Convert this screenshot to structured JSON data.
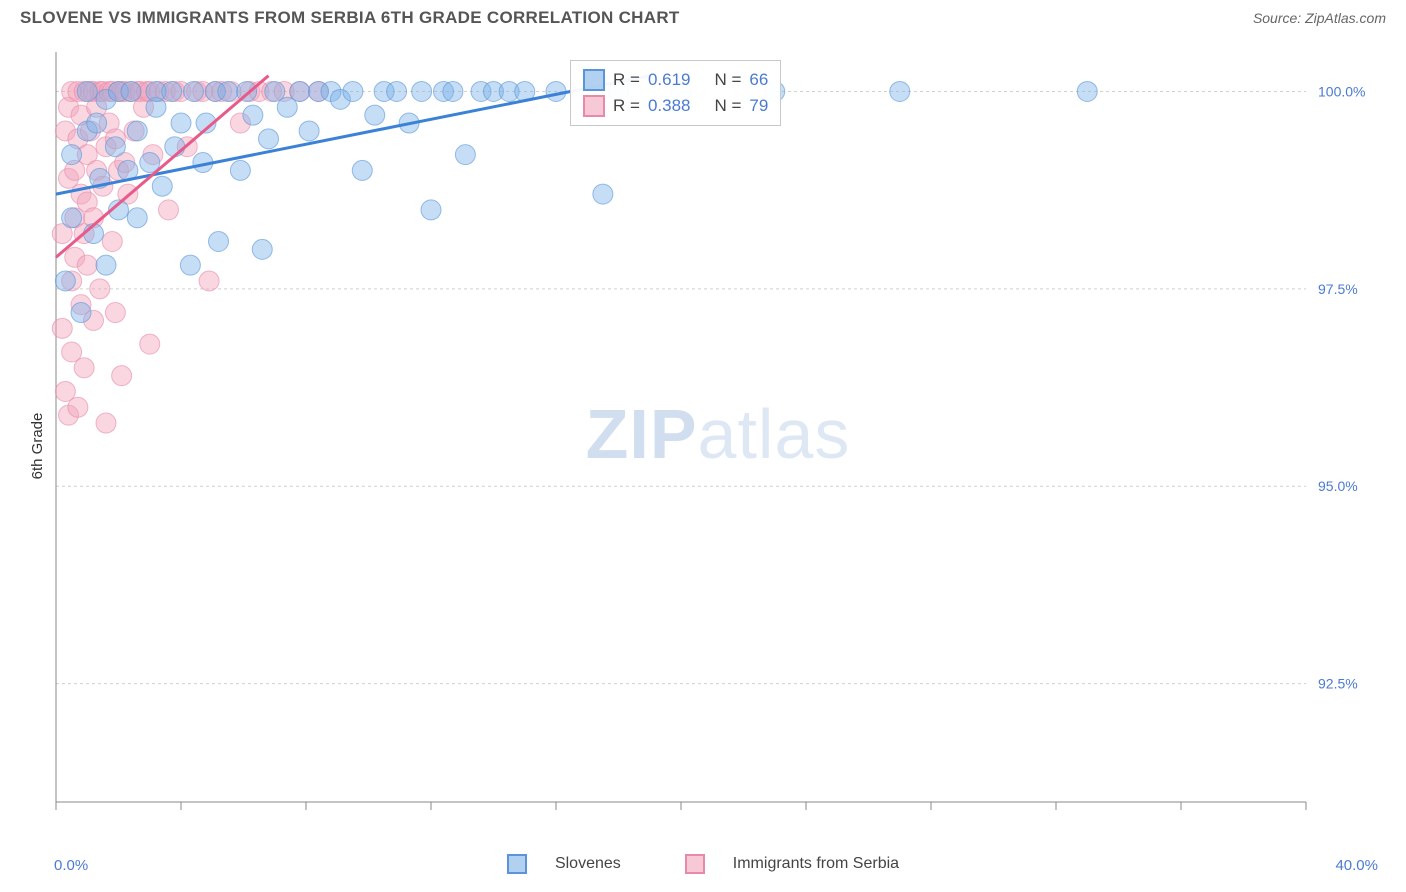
{
  "header": {
    "title": "SLOVENE VS IMMIGRANTS FROM SERBIA 6TH GRADE CORRELATION CHART",
    "source": "Source: ZipAtlas.com"
  },
  "yaxis": {
    "label": "6th Grade"
  },
  "watermark": {
    "bold": "ZIP",
    "rest": "atlas"
  },
  "chart": {
    "type": "scatter",
    "background_color": "#ffffff",
    "grid_color": "#d0d0d0",
    "xlim": [
      0,
      40
    ],
    "ylim": [
      91,
      100.5
    ],
    "y_ticks": [
      92.5,
      95.0,
      97.5,
      100.0
    ],
    "y_tick_labels": [
      "92.5%",
      "95.0%",
      "97.5%",
      "100.0%"
    ],
    "x_ticks": [
      0,
      4,
      8,
      12,
      16,
      20,
      24,
      28,
      32,
      36,
      40
    ],
    "x_min_label": "0.0%",
    "x_max_label": "40.0%",
    "marker_radius": 10,
    "marker_opacity": 0.45,
    "trend_line_width": 3,
    "series": [
      {
        "name": "Slovenes",
        "color_fill": "#7fb3e8",
        "color_stroke": "#5a95d8",
        "R": "0.619",
        "N": "66",
        "trend": {
          "x1": 0,
          "y1": 98.7,
          "x2": 19,
          "y2": 100.2
        },
        "points": [
          [
            0.3,
            97.6
          ],
          [
            0.5,
            98.4
          ],
          [
            0.5,
            99.2
          ],
          [
            0.8,
            97.2
          ],
          [
            1.0,
            99.5
          ],
          [
            1.0,
            100.0
          ],
          [
            1.2,
            98.2
          ],
          [
            1.3,
            99.6
          ],
          [
            1.4,
            98.9
          ],
          [
            1.6,
            97.8
          ],
          [
            1.6,
            99.9
          ],
          [
            1.9,
            99.3
          ],
          [
            2.0,
            100.0
          ],
          [
            2.0,
            98.5
          ],
          [
            2.3,
            99.0
          ],
          [
            2.4,
            100.0
          ],
          [
            2.6,
            98.4
          ],
          [
            2.6,
            99.5
          ],
          [
            3.0,
            99.1
          ],
          [
            3.2,
            99.8
          ],
          [
            3.2,
            100.0
          ],
          [
            3.4,
            98.8
          ],
          [
            3.7,
            100.0
          ],
          [
            3.8,
            99.3
          ],
          [
            4.0,
            99.6
          ],
          [
            4.3,
            97.8
          ],
          [
            4.4,
            100.0
          ],
          [
            4.7,
            99.1
          ],
          [
            4.8,
            99.6
          ],
          [
            5.1,
            100.0
          ],
          [
            5.2,
            98.1
          ],
          [
            5.5,
            100.0
          ],
          [
            5.9,
            99.0
          ],
          [
            6.1,
            100.0
          ],
          [
            6.3,
            99.7
          ],
          [
            6.6,
            98.0
          ],
          [
            6.8,
            99.4
          ],
          [
            7.0,
            100.0
          ],
          [
            7.4,
            99.8
          ],
          [
            7.8,
            100.0
          ],
          [
            8.1,
            99.5
          ],
          [
            8.4,
            100.0
          ],
          [
            8.8,
            100.0
          ],
          [
            9.1,
            99.9
          ],
          [
            9.5,
            100.0
          ],
          [
            9.8,
            99.0
          ],
          [
            10.2,
            99.7
          ],
          [
            10.5,
            100.0
          ],
          [
            10.9,
            100.0
          ],
          [
            11.3,
            99.6
          ],
          [
            11.7,
            100.0
          ],
          [
            12.0,
            98.5
          ],
          [
            12.4,
            100.0
          ],
          [
            12.7,
            100.0
          ],
          [
            13.1,
            99.2
          ],
          [
            13.6,
            100.0
          ],
          [
            14.0,
            100.0
          ],
          [
            14.5,
            100.0
          ],
          [
            15.0,
            100.0
          ],
          [
            16.0,
            100.0
          ],
          [
            17.5,
            98.7
          ],
          [
            18.0,
            100.0
          ],
          [
            20.0,
            100.0
          ],
          [
            23.0,
            100.0
          ],
          [
            27.0,
            100.0
          ],
          [
            33.0,
            100.0
          ]
        ]
      },
      {
        "name": "Immigrants from Serbia",
        "color_fill": "#f2a3bb",
        "color_stroke": "#e889a9",
        "R": "0.388",
        "N": "79",
        "trend": {
          "x1": 0,
          "y1": 97.9,
          "x2": 6.8,
          "y2": 100.2
        },
        "points": [
          [
            0.2,
            98.2
          ],
          [
            0.2,
            97.0
          ],
          [
            0.3,
            99.5
          ],
          [
            0.3,
            96.2
          ],
          [
            0.4,
            98.9
          ],
          [
            0.4,
            99.8
          ],
          [
            0.4,
            95.9
          ],
          [
            0.5,
            97.6
          ],
          [
            0.5,
            100.0
          ],
          [
            0.5,
            96.7
          ],
          [
            0.6,
            98.4
          ],
          [
            0.6,
            99.0
          ],
          [
            0.6,
            97.9
          ],
          [
            0.7,
            99.4
          ],
          [
            0.7,
            96.0
          ],
          [
            0.7,
            100.0
          ],
          [
            0.8,
            98.7
          ],
          [
            0.8,
            97.3
          ],
          [
            0.8,
            99.7
          ],
          [
            0.9,
            98.2
          ],
          [
            0.9,
            100.0
          ],
          [
            0.9,
            96.5
          ],
          [
            1.0,
            99.2
          ],
          [
            1.0,
            97.8
          ],
          [
            1.0,
            98.6
          ],
          [
            1.1,
            100.0
          ],
          [
            1.1,
            99.5
          ],
          [
            1.2,
            97.1
          ],
          [
            1.2,
            100.0
          ],
          [
            1.2,
            98.4
          ],
          [
            1.3,
            99.8
          ],
          [
            1.3,
            99.0
          ],
          [
            1.4,
            100.0
          ],
          [
            1.4,
            97.5
          ],
          [
            1.5,
            100.0
          ],
          [
            1.5,
            98.8
          ],
          [
            1.6,
            99.3
          ],
          [
            1.6,
            95.8
          ],
          [
            1.7,
            100.0
          ],
          [
            1.7,
            99.6
          ],
          [
            1.8,
            98.1
          ],
          [
            1.8,
            100.0
          ],
          [
            1.9,
            99.4
          ],
          [
            1.9,
            97.2
          ],
          [
            2.0,
            100.0
          ],
          [
            2.0,
            99.0
          ],
          [
            2.1,
            96.4
          ],
          [
            2.1,
            100.0
          ],
          [
            2.2,
            99.1
          ],
          [
            2.2,
            100.0
          ],
          [
            2.3,
            98.7
          ],
          [
            2.4,
            100.0
          ],
          [
            2.5,
            99.5
          ],
          [
            2.6,
            100.0
          ],
          [
            2.7,
            100.0
          ],
          [
            2.8,
            99.8
          ],
          [
            2.9,
            100.0
          ],
          [
            3.0,
            100.0
          ],
          [
            3.0,
            96.8
          ],
          [
            3.1,
            99.2
          ],
          [
            3.3,
            100.0
          ],
          [
            3.5,
            100.0
          ],
          [
            3.6,
            98.5
          ],
          [
            3.8,
            100.0
          ],
          [
            4.0,
            100.0
          ],
          [
            4.2,
            99.3
          ],
          [
            4.5,
            100.0
          ],
          [
            4.7,
            100.0
          ],
          [
            4.9,
            97.6
          ],
          [
            5.1,
            100.0
          ],
          [
            5.3,
            100.0
          ],
          [
            5.6,
            100.0
          ],
          [
            5.9,
            99.6
          ],
          [
            6.2,
            100.0
          ],
          [
            6.5,
            100.0
          ],
          [
            6.9,
            100.0
          ],
          [
            7.3,
            100.0
          ],
          [
            7.8,
            100.0
          ],
          [
            8.4,
            100.0
          ]
        ]
      }
    ]
  },
  "stats_legend": {
    "rows": [
      {
        "swatch": "blue",
        "r_label": "R =",
        "r_val": "0.619",
        "n_label": "N =",
        "n_val": "66"
      },
      {
        "swatch": "pink",
        "r_label": "R =",
        "r_val": "0.388",
        "n_label": "N =",
        "n_val": "79"
      }
    ]
  },
  "bottom_legend": {
    "items": [
      {
        "swatch": "blue",
        "label": "Slovenes"
      },
      {
        "swatch": "pink",
        "label": "Immigrants from Serbia"
      }
    ]
  }
}
